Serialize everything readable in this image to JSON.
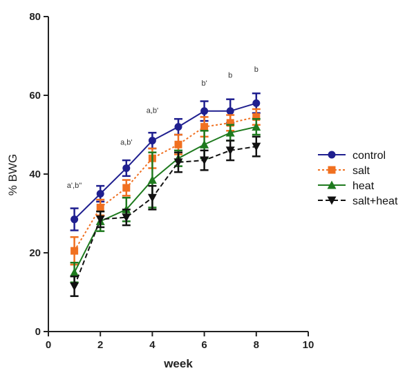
{
  "chart_data": {
    "type": "line",
    "xlabel": "week",
    "ylabel": "% BWG",
    "xlim": [
      0,
      10
    ],
    "ylim": [
      0,
      80
    ],
    "x_ticks": [
      "0",
      "2",
      "4",
      "6",
      "8",
      "10"
    ],
    "y_ticks": [
      "0",
      "20",
      "40",
      "60",
      "80"
    ],
    "x": [
      1,
      2,
      3,
      4,
      5,
      6,
      7,
      8
    ],
    "series": [
      {
        "name": "control",
        "color": "#1f1f8f",
        "marker": "circle",
        "dash": "solid",
        "values": [
          28.5,
          35.0,
          41.5,
          48.5,
          52.0,
          56.0,
          56.0,
          58.0
        ],
        "errors": [
          2.8,
          2.0,
          2.0,
          2.0,
          2.0,
          2.5,
          3.0,
          2.5
        ]
      },
      {
        "name": "salt",
        "color": "#f07020",
        "marker": "square",
        "dash": "dotted",
        "values": [
          20.5,
          31.5,
          36.5,
          44.0,
          47.5,
          52.0,
          53.0,
          54.5
        ],
        "errors": [
          3.5,
          2.0,
          2.0,
          2.5,
          2.5,
          2.5,
          2.0,
          2.0
        ]
      },
      {
        "name": "heat",
        "color": "#1e7a1e",
        "marker": "triangle-up",
        "dash": "solid",
        "values": [
          15.0,
          28.0,
          31.0,
          38.5,
          44.0,
          47.5,
          50.5,
          52.0
        ],
        "errors": [
          2.5,
          2.5,
          3.0,
          7.0,
          2.0,
          3.5,
          2.0,
          2.0
        ]
      },
      {
        "name": "salt+heat",
        "color": "#111111",
        "marker": "triangle-down",
        "dash": "dashed",
        "values": [
          11.5,
          28.5,
          29.0,
          34.0,
          43.0,
          43.5,
          46.0,
          47.0
        ],
        "errors": [
          2.5,
          2.0,
          2.0,
          3.0,
          2.5,
          2.5,
          2.5,
          2.5
        ]
      }
    ],
    "annotations": [
      {
        "x": 1,
        "y": 36.5,
        "text": "a',b''"
      },
      {
        "x": 3,
        "y": 47.5,
        "text": "a,b'"
      },
      {
        "x": 4,
        "y": 55.5,
        "text": "a,b'"
      },
      {
        "x": 6,
        "y": 62.5,
        "text": "b'"
      },
      {
        "x": 7,
        "y": 64.5,
        "text": "b"
      },
      {
        "x": 8,
        "y": 66.0,
        "text": "b"
      }
    ],
    "legend_position": "right",
    "grid": false
  }
}
